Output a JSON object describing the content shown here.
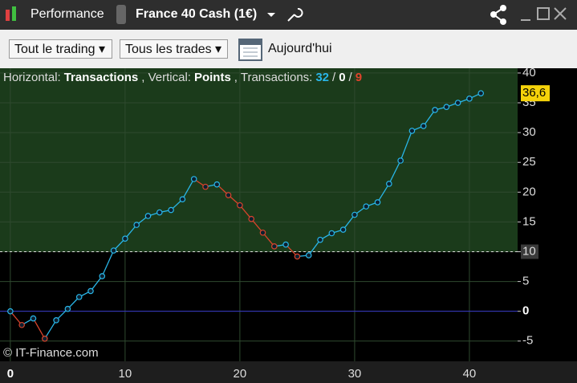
{
  "window": {
    "app": "Performance",
    "instrument": "France 40 Cash (1€)"
  },
  "toolbar": {
    "filter_1": "Tout le trading",
    "filter_2": "Tous les trades",
    "date": "Aujourd'hui"
  },
  "chart_data": {
    "type": "line",
    "header": {
      "h_label": "Horizontal:",
      "h_value": "Transactions",
      "v_label": ", Vertical:",
      "v_value": "Points",
      "t_label": ", Transactions:",
      "winning": 32,
      "neutral": 0,
      "losing": 9,
      "separator": "/"
    },
    "watermark": "© IT-Finance.com",
    "x": [
      0,
      1,
      2,
      3,
      4,
      5,
      6,
      7,
      8,
      9,
      10,
      11,
      12,
      13,
      14,
      15,
      16,
      17,
      18,
      19,
      20,
      21,
      22,
      23,
      24,
      25,
      26,
      27,
      28,
      29,
      30,
      31,
      32,
      33,
      34,
      35,
      36,
      37,
      38,
      39,
      40,
      41
    ],
    "series": [
      {
        "color": "#29b6e8",
        "down_color": "#d9442c",
        "values": [
          0,
          -2.3,
          -1.2,
          -4.6,
          -1.5,
          0.4,
          2.4,
          3.4,
          5.9,
          10.2,
          12.2,
          14.5,
          16.0,
          16.6,
          17.0,
          18.8,
          22.2,
          20.9,
          21.3,
          19.5,
          17.8,
          15.5,
          13.2,
          10.9,
          11.2,
          9.2,
          9.4,
          12.0,
          13.1,
          13.7,
          16.2,
          17.6,
          18.3,
          21.4,
          25.3,
          30.3,
          31.1,
          33.8,
          34.3,
          35.0,
          35.7,
          36.6
        ],
        "value_labels": [
          null,
          null,
          null,
          null,
          null,
          null,
          null,
          null,
          null,
          null,
          null,
          null,
          null,
          null,
          null,
          null,
          null,
          null,
          null,
          null,
          null,
          null,
          null,
          null,
          null,
          null,
          null,
          null,
          null,
          null,
          null,
          null,
          null,
          null,
          null,
          null,
          null,
          null,
          null,
          null,
          null,
          "36,6"
        ]
      }
    ],
    "threshold": 10,
    "xlim": [
      -0.9,
      44.2
    ],
    "xticks": [
      0,
      10,
      20,
      30,
      40
    ],
    "ylim": [
      -8.4,
      40.8
    ],
    "yticks": [
      -5,
      0,
      5,
      10,
      15,
      20,
      25,
      30,
      35,
      40
    ],
    "grid": true
  }
}
